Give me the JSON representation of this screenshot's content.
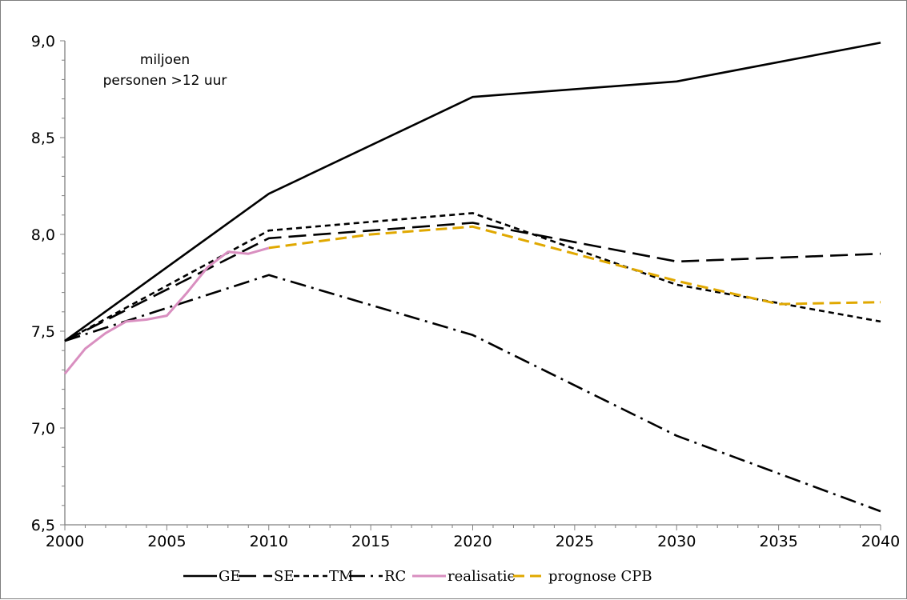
{
  "chart_data": {
    "type": "line",
    "unit_label": [
      "miljoen",
      "personen >12 uur"
    ],
    "x_ticks": [
      "2000",
      "2005",
      "2010",
      "2015",
      "2020",
      "2025",
      "2030",
      "2035",
      "2040"
    ],
    "y_ticks": [
      "6,5",
      "7,0",
      "7,5",
      "8,0",
      "8,5",
      "9,0"
    ],
    "xlim": [
      2000,
      2040
    ],
    "ylim": [
      6.5,
      9.0
    ],
    "grid": false,
    "legend_position": "bottom",
    "series": [
      {
        "name": "GE",
        "color": "#000000",
        "dash": "solid",
        "points": [
          [
            2000,
            7.45
          ],
          [
            2010,
            8.21
          ],
          [
            2020,
            8.71
          ],
          [
            2030,
            8.79
          ],
          [
            2040,
            8.99
          ]
        ]
      },
      {
        "name": "SE",
        "color": "#000000",
        "dash": "longdash",
        "points": [
          [
            2000,
            7.45
          ],
          [
            2010,
            7.98
          ],
          [
            2020,
            8.06
          ],
          [
            2030,
            7.86
          ],
          [
            2040,
            7.9
          ]
        ]
      },
      {
        "name": "TM",
        "color": "#000000",
        "dash": "shortdash",
        "points": [
          [
            2000,
            7.45
          ],
          [
            2010,
            8.02
          ],
          [
            2020,
            8.11
          ],
          [
            2030,
            7.74
          ],
          [
            2040,
            7.55
          ]
        ]
      },
      {
        "name": "RC",
        "color": "#000000",
        "dash": "dashdot",
        "points": [
          [
            2000,
            7.45
          ],
          [
            2010,
            7.79
          ],
          [
            2020,
            7.48
          ],
          [
            2030,
            6.96
          ],
          [
            2040,
            6.57
          ]
        ]
      },
      {
        "name": "realisatie",
        "color": "#d98fc0",
        "dash": "solid",
        "points": [
          [
            2000,
            7.28
          ],
          [
            2001,
            7.41
          ],
          [
            2002,
            7.49
          ],
          [
            2003,
            7.55
          ],
          [
            2004,
            7.56
          ],
          [
            2005,
            7.58
          ],
          [
            2006,
            7.7
          ],
          [
            2007,
            7.83
          ],
          [
            2008,
            7.91
          ],
          [
            2009,
            7.9
          ],
          [
            2010,
            7.93
          ]
        ]
      },
      {
        "name": "prognose CPB",
        "color": "#e0a800",
        "dash": "dash",
        "points": [
          [
            2010,
            7.93
          ],
          [
            2015,
            8.0
          ],
          [
            2020,
            8.04
          ],
          [
            2025,
            7.9
          ],
          [
            2030,
            7.76
          ],
          [
            2035,
            7.64
          ],
          [
            2040,
            7.65
          ]
        ]
      }
    ]
  }
}
